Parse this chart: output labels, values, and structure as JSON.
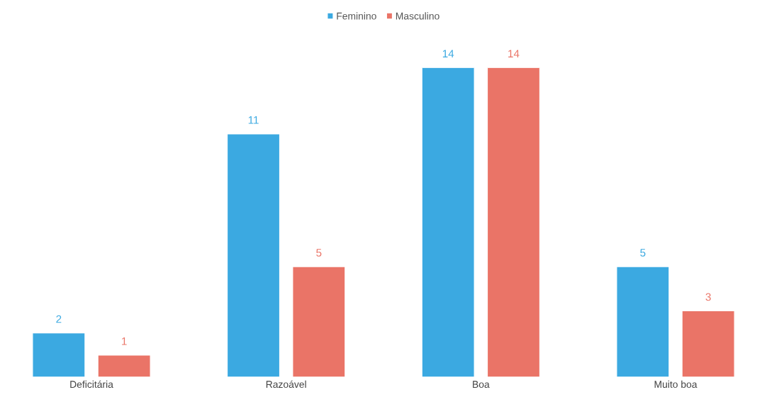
{
  "chart_data": {
    "type": "bar",
    "categories": [
      "Deficitária",
      "Razoável",
      "Boa",
      "Muito boa"
    ],
    "series": [
      {
        "name": "Feminino",
        "color": "#3ba9e1",
        "values": [
          2,
          11,
          14,
          5
        ]
      },
      {
        "name": "Masculino",
        "color": "#ea7467",
        "values": [
          1,
          5,
          14,
          3
        ]
      }
    ],
    "data_labels": true,
    "legend": "top",
    "grid": false
  }
}
